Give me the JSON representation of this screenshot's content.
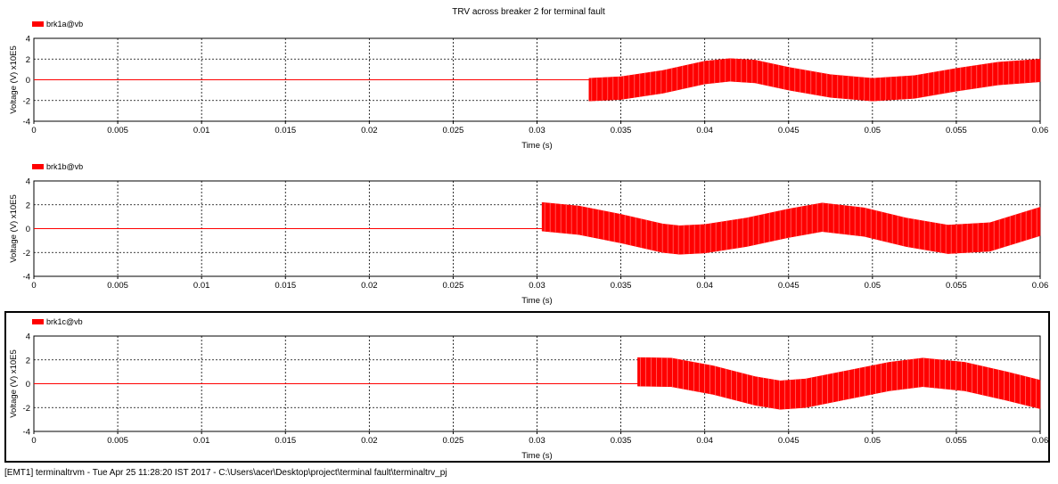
{
  "chart_data": {
    "type": "line",
    "title": "TRV across breaker 2 for terminal fault",
    "xlim": [
      0,
      0.06
    ],
    "x_ticks": [
      "0",
      "0.005",
      "0.01",
      "0.015",
      "0.02",
      "0.025",
      "0.03",
      "0.035",
      "0.04",
      "0.045",
      "0.05",
      "0.055",
      "0.06"
    ],
    "y_ticks": [
      "4",
      "2",
      "0",
      "-2",
      "-4"
    ],
    "ylim": [
      -4,
      4
    ],
    "grid": true,
    "line_color": "#ff0000",
    "panels": [
      {
        "legend": "brk1a@vb",
        "xlabel": "Time (s)",
        "ylabel": "Voltage (V) x10E5",
        "series": [
          {
            "name": "brk1a@vb",
            "x": [
              0,
              0.0331,
              0.0331,
              0.035,
              0.0375,
              0.04,
              0.0415,
              0.043,
              0.045,
              0.0475,
              0.05,
              0.0525,
              0.055,
              0.0575,
              0.06
            ],
            "center": [
              0,
              0,
              -0.95,
              -0.8,
              -0.2,
              0.7,
              0.95,
              0.8,
              0.1,
              -0.6,
              -0.95,
              -0.7,
              0,
              0.6,
              0.9
            ],
            "band": [
              0,
              0,
              2.2,
              2.2,
              2.2,
              2.2,
              2.2,
              2.2,
              2.2,
              2.2,
              2.2,
              2.2,
              2.2,
              2.2,
              2.2
            ]
          }
        ],
        "highlighted": false
      },
      {
        "legend": "brk1b@vb",
        "xlabel": "Time (s)",
        "ylabel": "Voltage (V) x10E5",
        "series": [
          {
            "name": "brk1b@vb",
            "x": [
              0,
              0.0303,
              0.0303,
              0.0325,
              0.035,
              0.0375,
              0.0385,
              0.04,
              0.0425,
              0.045,
              0.047,
              0.0495,
              0.052,
              0.0545,
              0.057,
              0.06
            ],
            "center": [
              0,
              0,
              1.0,
              0.7,
              0,
              -0.8,
              -0.95,
              -0.85,
              -0.3,
              0.45,
              0.95,
              0.55,
              -0.3,
              -0.9,
              -0.7,
              0.6
            ],
            "band": [
              0,
              0,
              2.4,
              2.4,
              2.4,
              2.4,
              2.4,
              2.4,
              2.4,
              2.4,
              2.4,
              2.4,
              2.4,
              2.4,
              2.4,
              2.4
            ]
          }
        ],
        "highlighted": false
      },
      {
        "legend": "brk1c@vb",
        "xlabel": "Time (s)",
        "ylabel": "Voltage (V) x10E5",
        "series": [
          {
            "name": "brk1c@vb",
            "x": [
              0,
              0.036,
              0.036,
              0.038,
              0.0405,
              0.043,
              0.0445,
              0.046,
              0.0485,
              0.051,
              0.053,
              0.0555,
              0.058,
              0.06
            ],
            "center": [
              0,
              0,
              1.0,
              0.95,
              0.3,
              -0.6,
              -0.95,
              -0.8,
              -0.1,
              0.6,
              0.95,
              0.6,
              -0.2,
              -0.9
            ],
            "band": [
              0,
              0,
              2.4,
              2.4,
              2.4,
              2.4,
              2.4,
              2.4,
              2.4,
              2.4,
              2.4,
              2.4,
              2.4,
              2.4
            ]
          }
        ],
        "highlighted": true
      }
    ]
  },
  "status_bar": "[EMT1] terminaltrvm - Tue Apr 25 11:28:20 IST 2017 - C:\\Users\\acer\\Desktop\\project\\terminal fault\\terminaltrv_pj"
}
